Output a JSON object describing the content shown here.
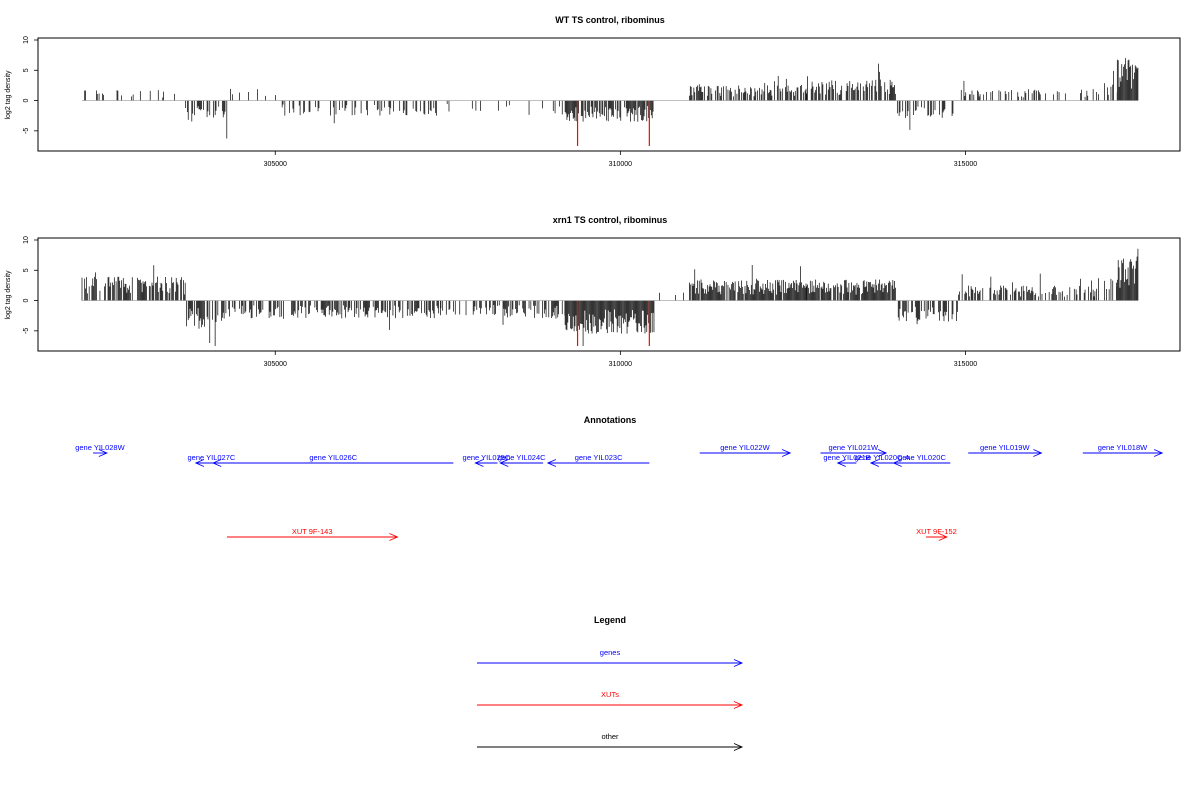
{
  "colors": {
    "gene": "#0000ff",
    "xut": "#ff0000",
    "other": "#000000",
    "bars": "#000000",
    "highlight": "#ff0000",
    "baseline": "#999999"
  },
  "chart_data": [
    {
      "id": "wt",
      "type": "bar",
      "title": "WT TS control, ribominus",
      "ylabel": "log2 tag density",
      "xlabel": "",
      "xlim": [
        302200,
        317500
      ],
      "ylim": [
        -8,
        10
      ],
      "xticks": [
        305000,
        310000,
        315000
      ],
      "xtick_labels": [
        "305000",
        "310000",
        "315000"
      ],
      "yticks": [
        -5,
        0,
        5,
        10
      ],
      "ytick_labels": [
        "-5",
        "0",
        "5",
        "10"
      ],
      "highlight_x": [
        309380,
        310420
      ],
      "highlight_value": -7.5,
      "region_profile": [
        {
          "from": 302200,
          "to": 303700,
          "sign": 1,
          "amp": 2,
          "density": 0.15
        },
        {
          "from": 303700,
          "to": 304300,
          "sign": -1,
          "amp": 3.5,
          "density": 0.6
        },
        {
          "from": 304300,
          "to": 305100,
          "sign": 1,
          "amp": 2,
          "density": 0.1
        },
        {
          "from": 305100,
          "to": 307400,
          "sign": -1,
          "amp": 2.5,
          "density": 0.35
        },
        {
          "from": 307400,
          "to": 308300,
          "sign": -1,
          "amp": 2,
          "density": 0.1
        },
        {
          "from": 308300,
          "to": 309200,
          "sign": -1,
          "amp": 2.5,
          "density": 0.2
        },
        {
          "from": 309200,
          "to": 310500,
          "sign": -1,
          "amp": 3.5,
          "density": 0.8
        },
        {
          "from": 310500,
          "to": 311000,
          "sign": 1,
          "amp": 1.5,
          "density": 0.05
        },
        {
          "from": 311000,
          "to": 312700,
          "sign": 1,
          "amp": 2.5,
          "density": 0.6
        },
        {
          "from": 312700,
          "to": 314000,
          "sign": 1,
          "amp": 3.5,
          "density": 0.7
        },
        {
          "from": 314000,
          "to": 314900,
          "sign": -1,
          "amp": 3,
          "density": 0.45
        },
        {
          "from": 314900,
          "to": 316900,
          "sign": 1,
          "amp": 2,
          "density": 0.3
        },
        {
          "from": 316900,
          "to": 317200,
          "sign": 1,
          "amp": 3,
          "density": 0.3
        },
        {
          "from": 317200,
          "to": 317500,
          "sign": 1,
          "amp": 7,
          "density": 1.0
        }
      ]
    },
    {
      "id": "xrn1",
      "type": "bar",
      "title": "xrn1 TS control, ribominus",
      "ylabel": "log2 tag density",
      "xlabel": "",
      "xlim": [
        302200,
        317500
      ],
      "ylim": [
        -8,
        10
      ],
      "xticks": [
        305000,
        310000,
        315000
      ],
      "xtick_labels": [
        "305000",
        "310000",
        "315000"
      ],
      "yticks": [
        -5,
        0,
        5,
        10
      ],
      "ytick_labels": [
        "-5",
        "0",
        "5",
        "10"
      ],
      "highlight_x": [
        309380,
        310420
      ],
      "highlight_value": -7.5,
      "region_profile": [
        {
          "from": 302200,
          "to": 303700,
          "sign": 1,
          "amp": 4,
          "density": 0.7
        },
        {
          "from": 303700,
          "to": 304300,
          "sign": -1,
          "amp": 4.5,
          "density": 0.6
        },
        {
          "from": 304300,
          "to": 307400,
          "sign": -1,
          "amp": 3,
          "density": 0.6
        },
        {
          "from": 307400,
          "to": 308300,
          "sign": -1,
          "amp": 2.5,
          "density": 0.3
        },
        {
          "from": 308300,
          "to": 309200,
          "sign": -1,
          "amp": 3,
          "density": 0.5
        },
        {
          "from": 309200,
          "to": 310500,
          "sign": -1,
          "amp": 5.5,
          "density": 1.0
        },
        {
          "from": 310500,
          "to": 311000,
          "sign": 1,
          "amp": 1.5,
          "density": 0.1
        },
        {
          "from": 311000,
          "to": 312700,
          "sign": 1,
          "amp": 3.5,
          "density": 0.9
        },
        {
          "from": 312700,
          "to": 314000,
          "sign": 1,
          "amp": 3.5,
          "density": 0.9
        },
        {
          "from": 314000,
          "to": 314900,
          "sign": -1,
          "amp": 3.5,
          "density": 0.6
        },
        {
          "from": 314900,
          "to": 316900,
          "sign": 1,
          "amp": 2.5,
          "density": 0.6
        },
        {
          "from": 316900,
          "to": 317200,
          "sign": 1,
          "amp": 4,
          "density": 0.5
        },
        {
          "from": 317200,
          "to": 317500,
          "sign": 1,
          "amp": 7.5,
          "density": 1.0
        }
      ]
    }
  ],
  "annotations": {
    "title": "Annotations",
    "items": [
      {
        "label": "gene YIL028W",
        "start": 302360,
        "end": 302560,
        "strand": "+",
        "type": "gene",
        "row": 0
      },
      {
        "label": "gene YIL027C",
        "start": 303850,
        "end": 304300,
        "strand": "-",
        "type": "gene",
        "row": 1
      },
      {
        "label": "gene YIL026C",
        "start": 304100,
        "end": 307580,
        "strand": "-",
        "type": "gene",
        "row": 1
      },
      {
        "label": "gene YIL025C",
        "start": 307900,
        "end": 308220,
        "strand": "-",
        "type": "gene",
        "row": 1
      },
      {
        "label": "gene YIL024C",
        "start": 308260,
        "end": 308880,
        "strand": "-",
        "type": "gene",
        "row": 1
      },
      {
        "label": "gene YIL023C",
        "start": 308950,
        "end": 310420,
        "strand": "-",
        "type": "gene",
        "row": 1
      },
      {
        "label": "gene YIL022W",
        "start": 311150,
        "end": 312460,
        "strand": "+",
        "type": "gene",
        "row": 0
      },
      {
        "label": "gene YIL021W",
        "start": 312900,
        "end": 313850,
        "strand": "+",
        "type": "gene",
        "row": 0
      },
      {
        "label": "gene YIL021B",
        "start": 313150,
        "end": 313420,
        "strand": "-",
        "type": "gene",
        "row": 1
      },
      {
        "label": "gene YIL020C-A",
        "start": 313630,
        "end": 313960,
        "strand": "-",
        "type": "gene",
        "row": 1
      },
      {
        "label": "gene YIL020C",
        "start": 313960,
        "end": 314780,
        "strand": "-",
        "type": "gene",
        "row": 1
      },
      {
        "label": "gene YIL019W",
        "start": 315040,
        "end": 316100,
        "strand": "+",
        "type": "gene",
        "row": 0
      },
      {
        "label": "gene YIL018W",
        "start": 316700,
        "end": 317850,
        "strand": "+",
        "type": "gene",
        "row": 0
      },
      {
        "label": "XUT 9F-143",
        "start": 304300,
        "end": 306770,
        "strand": "+",
        "type": "xut",
        "row": 2
      },
      {
        "label": "XUT 9F-152",
        "start": 314430,
        "end": 314730,
        "strand": "+",
        "type": "xut",
        "row": 2
      }
    ]
  },
  "legend": {
    "title": "Legend",
    "items": [
      {
        "label": "genes",
        "type": "gene"
      },
      {
        "label": "XUTs",
        "type": "xut"
      },
      {
        "label": "other",
        "type": "other"
      }
    ]
  }
}
